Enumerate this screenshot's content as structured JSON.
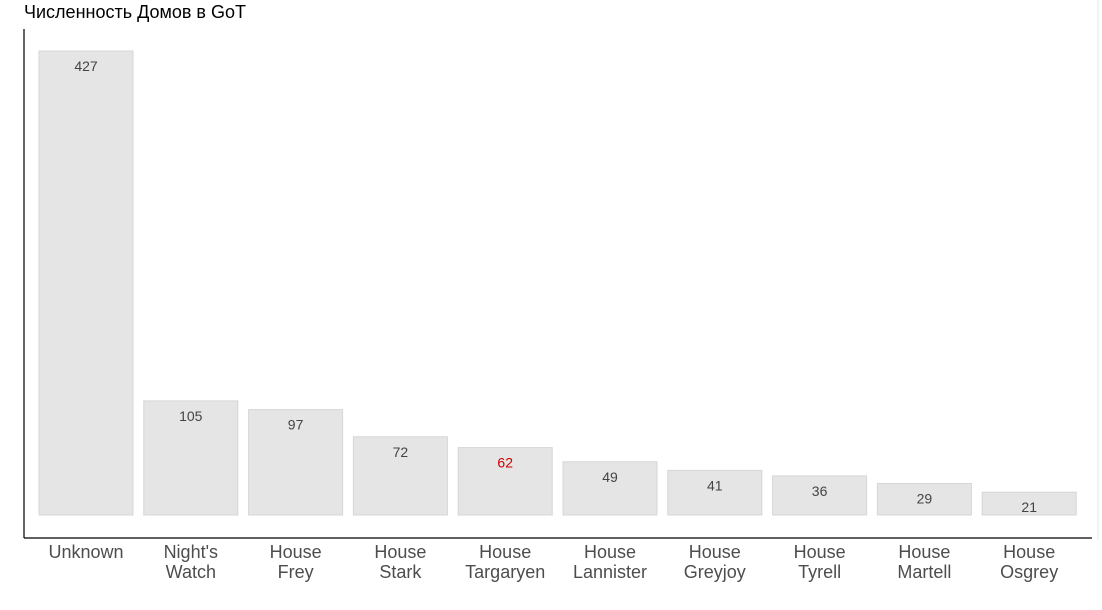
{
  "chart_data": {
    "type": "bar",
    "title": "Численность Домов в GoT",
    "xlabel": "",
    "ylabel": "",
    "ylim": [
      0,
      427
    ],
    "grid": false,
    "categories": [
      [
        "Unknown"
      ],
      [
        "Night's",
        "Watch"
      ],
      [
        "House",
        "Frey"
      ],
      [
        "House",
        "Stark"
      ],
      [
        "House",
        "Targaryen"
      ],
      [
        "House",
        "Lannister"
      ],
      [
        "House",
        "Greyjoy"
      ],
      [
        "House",
        "Tyrell"
      ],
      [
        "House",
        "Martell"
      ],
      [
        "House",
        "Osgrey"
      ]
    ],
    "values": [
      427,
      105,
      97,
      72,
      62,
      49,
      41,
      36,
      29,
      21
    ],
    "highlight_index": 4,
    "colors": {
      "bar_fill": "#e5e5e5",
      "bar_stroke": "#d6d6d6",
      "label": "#444444",
      "highlight_label": "#cc0000",
      "tick_label": "#4d4d4d",
      "axis": "#000000"
    }
  }
}
